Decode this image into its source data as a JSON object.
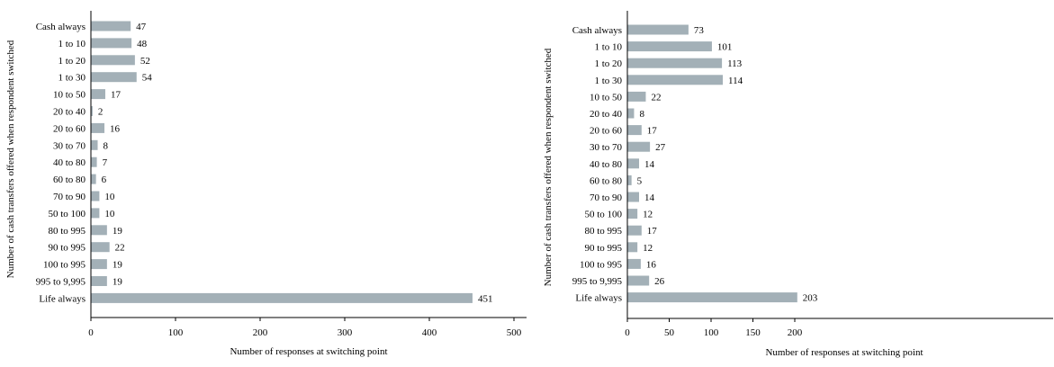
{
  "colors": {
    "bar": "#a3b0b7",
    "axis": "#000000",
    "text": "#000000"
  },
  "chart_data": [
    {
      "type": "bar",
      "orientation": "horizontal",
      "categories": [
        "Cash always",
        "1 to 10",
        "1 to 20",
        "1 to 30",
        "10 to 50",
        "20 to 40",
        "20 to 60",
        "30 to 70",
        "40 to 80",
        "60 to 80",
        "70 to 90",
        "50 to 100",
        "80 to 995",
        "90 to 995",
        "100 to 995",
        "995 to 9,995",
        "Life always"
      ],
      "values": [
        47,
        48,
        52,
        54,
        17,
        2,
        16,
        8,
        7,
        6,
        10,
        10,
        19,
        22,
        19,
        19,
        451
      ],
      "xlabel": "Number of responses at switching point",
      "ylabel": "Number of cash transfers offered when respondent switched",
      "xlim": [
        0,
        500
      ],
      "xticks": [
        0,
        100,
        200,
        300,
        400,
        500
      ],
      "grid": false
    },
    {
      "type": "bar",
      "orientation": "horizontal",
      "categories": [
        "Cash always",
        "1 to 10",
        "1 to 20",
        "1 to 30",
        "10 to 50",
        "20 to 40",
        "20 to 60",
        "30 to 70",
        "40 to 80",
        "60 to 80",
        "70 to 90",
        "50 to 100",
        "80 to 995",
        "90 to 995",
        "100 to 995",
        "995 to 9,995",
        "Life always"
      ],
      "values": [
        73,
        101,
        113,
        114,
        22,
        8,
        17,
        27,
        14,
        5,
        14,
        12,
        17,
        12,
        16,
        26,
        203
      ],
      "xlabel": "Number of responses at switching point",
      "ylabel": "Number of cash transfers offered when respondent switched",
      "xlim": [
        0,
        200
      ],
      "xticks": [
        0,
        50,
        100,
        150,
        200
      ],
      "grid": false
    }
  ]
}
